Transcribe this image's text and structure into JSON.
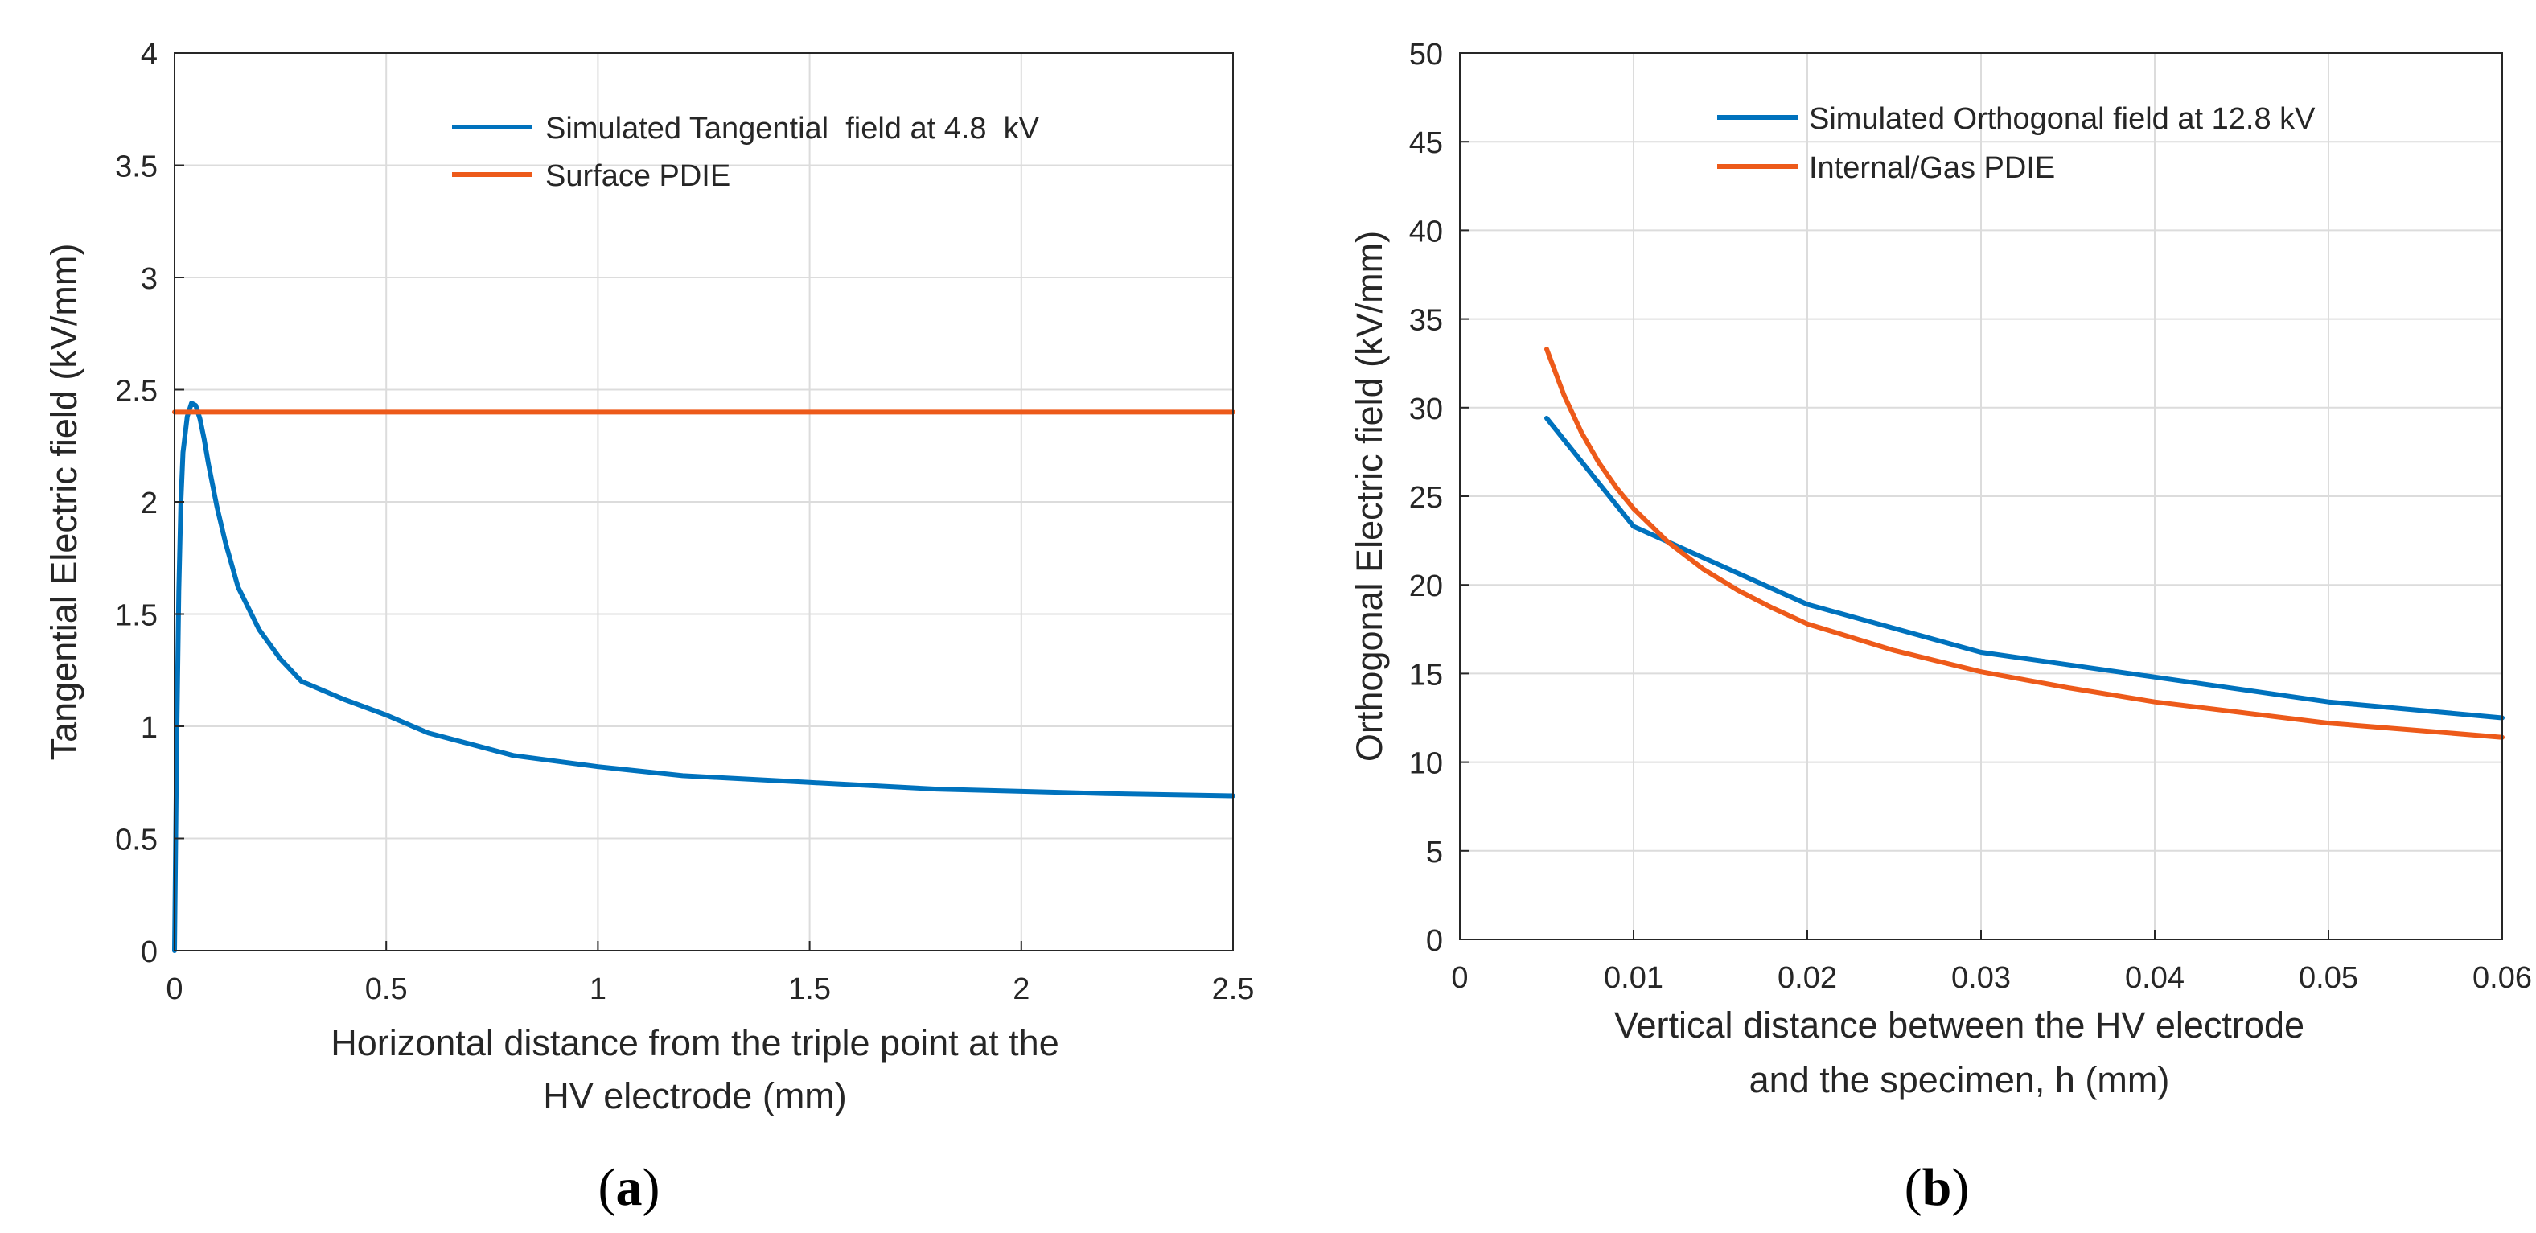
{
  "colors": {
    "blue": "#0072BD",
    "orange": "#ED5A1A",
    "grid": "#DCDCDC",
    "axis": "#262626"
  },
  "chart_data": [
    {
      "id": "a",
      "type": "line",
      "xlabel_lines": [
        "Horizontal distance from the triple point at the",
        "HV electrode (mm)"
      ],
      "ylabel": "Tangential Electric field (kV/mm)",
      "xlim": [
        0,
        2.5
      ],
      "ylim": [
        0,
        4
      ],
      "xticks": [
        0,
        0.5,
        1,
        1.5,
        2,
        2.5
      ],
      "xtick_labels": [
        "0",
        "0.5",
        "1",
        "1.5",
        "2",
        "2.5"
      ],
      "yticks": [
        0,
        0.5,
        1,
        1.5,
        2,
        2.5,
        3,
        3.5,
        4
      ],
      "ytick_labels": [
        "0",
        "0.5",
        "1",
        "1.5",
        "2",
        "2.5",
        "3",
        "3.5",
        "4"
      ],
      "grid": true,
      "legend_position": "top-right",
      "series": [
        {
          "name": "Simulated Tangential  field at 4.8  kV",
          "color": "#0072BD",
          "x": [
            0,
            0.005,
            0.01,
            0.015,
            0.02,
            0.03,
            0.04,
            0.05,
            0.06,
            0.07,
            0.08,
            0.1,
            0.12,
            0.15,
            0.2,
            0.25,
            0.3,
            0.4,
            0.5,
            0.6,
            0.7,
            0.8,
            1.0,
            1.2,
            1.5,
            1.8,
            2.0,
            2.2,
            2.5
          ],
          "y": [
            0,
            0.9,
            1.6,
            2.0,
            2.22,
            2.38,
            2.44,
            2.43,
            2.37,
            2.28,
            2.17,
            1.98,
            1.82,
            1.62,
            1.43,
            1.3,
            1.2,
            1.12,
            1.05,
            0.97,
            0.92,
            0.87,
            0.82,
            0.78,
            0.75,
            0.72,
            0.71,
            0.7,
            0.69
          ]
        },
        {
          "name": "Surface PDIE",
          "color": "#ED5A1A",
          "x": [
            0,
            2.5
          ],
          "y": [
            2.4,
            2.4
          ]
        }
      ],
      "caption": "(a)",
      "caption_letter": "a"
    },
    {
      "id": "b",
      "type": "line",
      "xlabel_lines": [
        "Vertical distance between the HV electrode",
        "and the specimen, h (mm)"
      ],
      "ylabel": "Orthogonal Electric field (kV/mm)",
      "xlim": [
        0,
        0.06
      ],
      "ylim": [
        0,
        50
      ],
      "xticks": [
        0,
        0.01,
        0.02,
        0.03,
        0.04,
        0.05,
        0.06
      ],
      "xtick_labels": [
        "0",
        "0.01",
        "0.02",
        "0.03",
        "0.04",
        "0.05",
        "0.06"
      ],
      "yticks": [
        0,
        5,
        10,
        15,
        20,
        25,
        30,
        35,
        40,
        45,
        50
      ],
      "ytick_labels": [
        "0",
        "5",
        "10",
        "15",
        "20",
        "25",
        "30",
        "35",
        "40",
        "45",
        "50"
      ],
      "grid": true,
      "legend_position": "top-right",
      "series": [
        {
          "name": "Simulated Orthogonal field at 12.8 kV",
          "color": "#0072BD",
          "x": [
            0.005,
            0.01,
            0.02,
            0.03,
            0.04,
            0.05,
            0.06
          ],
          "y": [
            29.4,
            23.3,
            18.9,
            16.2,
            14.8,
            13.4,
            12.5
          ]
        },
        {
          "name": "Internal/Gas PDIE",
          "color": "#ED5A1A",
          "x": [
            0.005,
            0.006,
            0.007,
            0.008,
            0.009,
            0.01,
            0.012,
            0.014,
            0.016,
            0.018,
            0.02,
            0.025,
            0.03,
            0.035,
            0.04,
            0.045,
            0.05,
            0.055,
            0.06
          ],
          "y": [
            33.3,
            30.7,
            28.6,
            26.9,
            25.5,
            24.3,
            22.4,
            20.9,
            19.7,
            18.7,
            17.8,
            16.3,
            15.1,
            14.2,
            13.4,
            12.8,
            12.2,
            11.8,
            11.4
          ]
        }
      ],
      "caption": "(b)",
      "caption_letter": "b"
    }
  ]
}
